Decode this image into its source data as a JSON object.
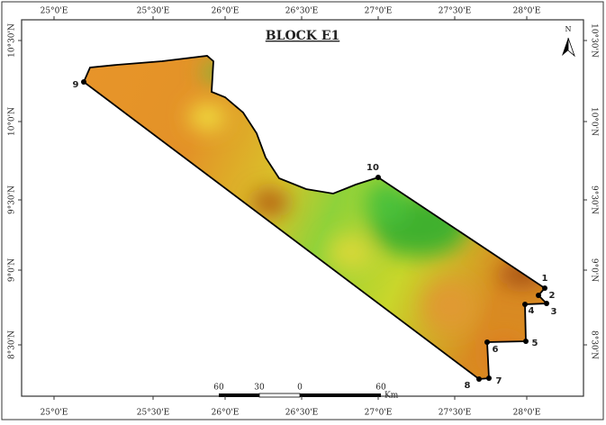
{
  "title": "BLOCK E1",
  "north": "N",
  "longitudes": [
    "25°0'E",
    "25°30'E",
    "26°0'E",
    "26°30'E",
    "27°0'E",
    "27°30'E",
    "28°0'E"
  ],
  "latitudes": [
    "10°30'N",
    "10°0'N",
    "9°30'N",
    "9°0'N",
    "8°30'N"
  ],
  "points": [
    "1",
    "2",
    "3",
    "4",
    "5",
    "6",
    "7",
    "8",
    "9",
    "10"
  ],
  "scale_bar": {
    "labels": [
      60,
      30,
      0,
      60
    ],
    "unit": "Km"
  }
}
